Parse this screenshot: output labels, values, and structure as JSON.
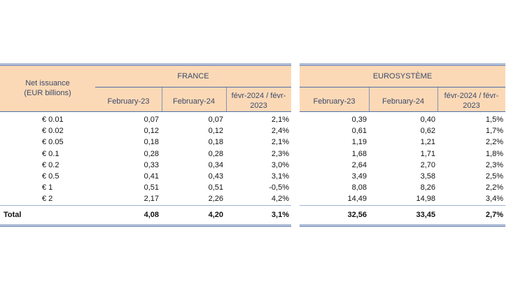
{
  "header": {
    "row_label": "Net issuance\n(EUR billions)",
    "france_title": "FRANCE",
    "euro_title": "EUROSYSTÈME",
    "col_feb23": "February-23",
    "col_feb24": "February-24",
    "col_change": "févr-2024 / févr-\n2023"
  },
  "rows": [
    {
      "label": "€ 0.01",
      "fr": [
        "0,07",
        "0,07",
        "2,1%"
      ],
      "eu": [
        "0,39",
        "0,40",
        "1,5%"
      ]
    },
    {
      "label": "€ 0.02",
      "fr": [
        "0,12",
        "0,12",
        "2,4%"
      ],
      "eu": [
        "0,61",
        "0,62",
        "1,7%"
      ]
    },
    {
      "label": "€ 0.05",
      "fr": [
        "0,18",
        "0,18",
        "2,1%"
      ],
      "eu": [
        "1,19",
        "1,21",
        "2,2%"
      ]
    },
    {
      "label": "€ 0.1",
      "fr": [
        "0,28",
        "0,28",
        "2,3%"
      ],
      "eu": [
        "1,68",
        "1,71",
        "1,8%"
      ]
    },
    {
      "label": "€ 0.2",
      "fr": [
        "0,33",
        "0,34",
        "3,0%"
      ],
      "eu": [
        "2,64",
        "2,70",
        "2,3%"
      ]
    },
    {
      "label": "€ 0.5",
      "fr": [
        "0,41",
        "0,43",
        "3,1%"
      ],
      "eu": [
        "3,49",
        "3,58",
        "2,5%"
      ]
    },
    {
      "label": "€ 1",
      "fr": [
        "0,51",
        "0,51",
        "-0,5%"
      ],
      "eu": [
        "8,08",
        "8,26",
        "2,2%"
      ]
    },
    {
      "label": "€ 2",
      "fr": [
        "2,17",
        "2,26",
        "4,2%"
      ],
      "eu": [
        "14,49",
        "14,98",
        "3,4%"
      ]
    }
  ],
  "total": {
    "label": "Total",
    "fr": [
      "4,08",
      "4,20",
      "3,1%"
    ],
    "eu": [
      "32,56",
      "33,45",
      "2,7%"
    ]
  }
}
